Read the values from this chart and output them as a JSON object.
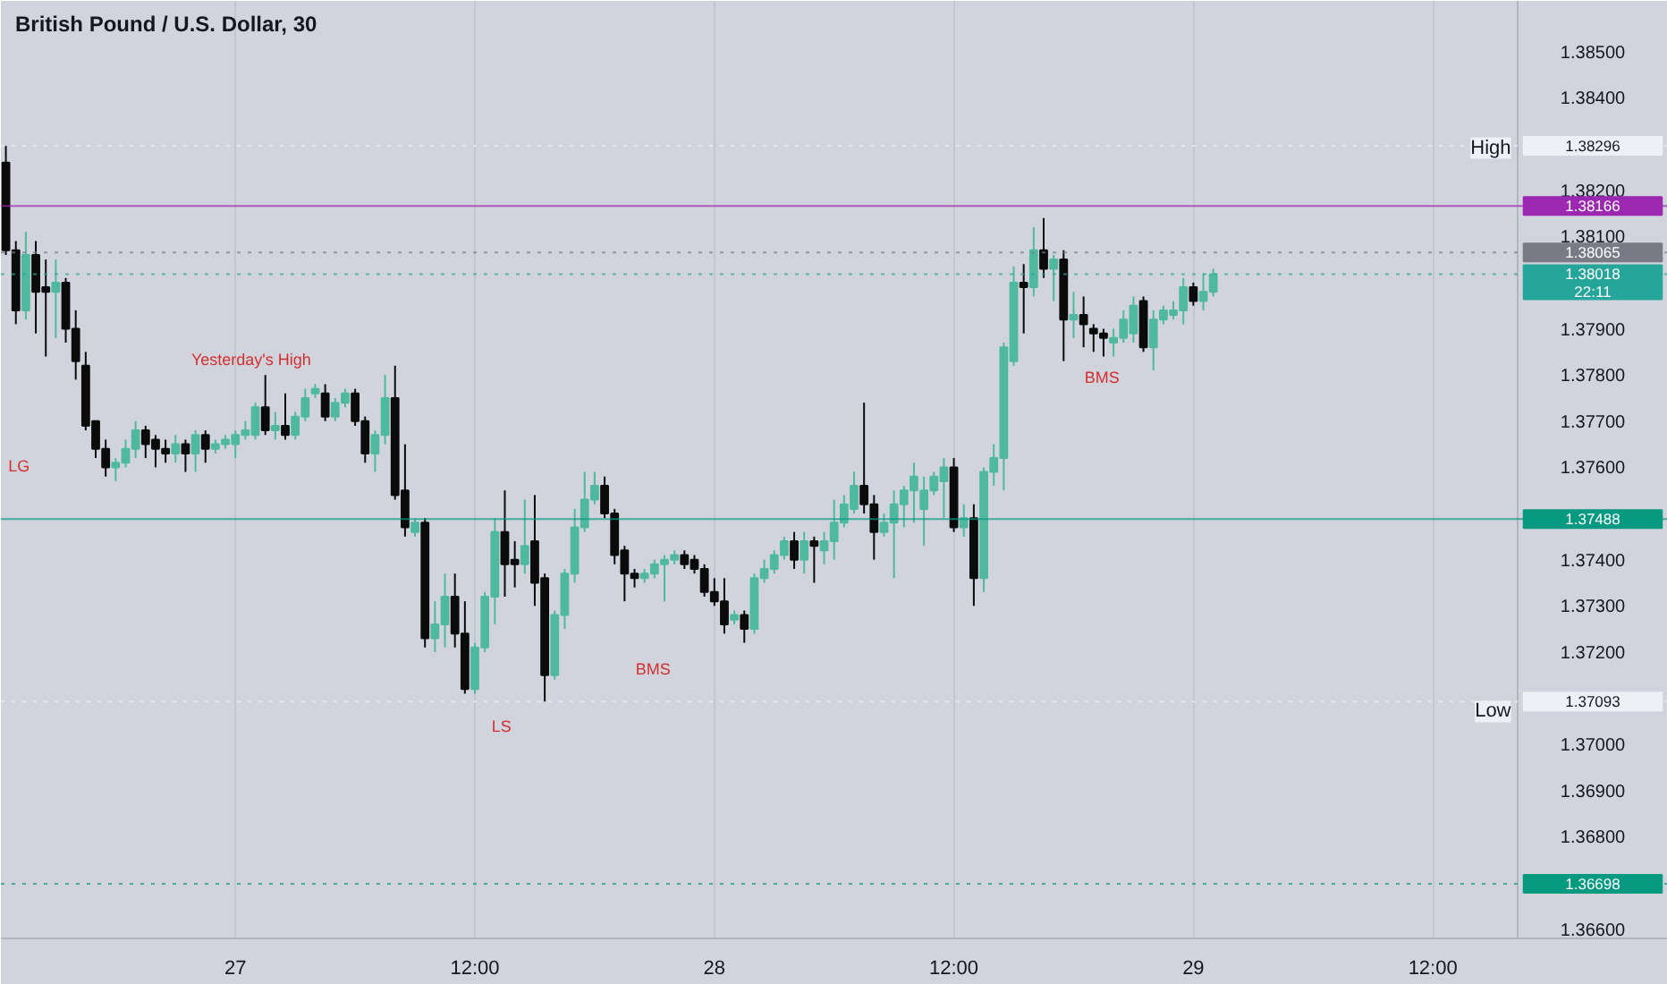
{
  "chart_data": {
    "type": "candlestick",
    "title": "British Pound / U.S. Dollar, 30",
    "categories": [
      null,
      null,
      null,
      null,
      null,
      null,
      null,
      null,
      null,
      null,
      null,
      null,
      null,
      null,
      null,
      null,
      null,
      null,
      null,
      null,
      null,
      null,
      null,
      "27",
      null,
      null,
      null,
      null,
      null,
      null,
      null,
      null,
      null,
      null,
      null,
      null,
      null,
      null,
      null,
      null,
      null,
      null,
      null,
      null,
      null,
      null,
      null,
      "12:00",
      null,
      null,
      null,
      null,
      null,
      null,
      null,
      null,
      null,
      null,
      null,
      null,
      null,
      null,
      null,
      null,
      null,
      null,
      null,
      null,
      null,
      null,
      null,
      "28",
      null,
      null,
      null,
      null,
      null,
      null,
      null,
      null,
      null,
      null,
      null,
      null,
      null,
      null,
      null,
      null,
      null,
      null,
      null,
      null,
      null,
      null,
      null,
      "12:00",
      null,
      null,
      null,
      null,
      null,
      null,
      null,
      null,
      null,
      null,
      null,
      null,
      null,
      null,
      null,
      null,
      null,
      null,
      null,
      null,
      null,
      null,
      null,
      "29",
      null,
      null,
      null,
      null,
      null,
      null,
      null,
      null,
      null,
      null,
      null,
      null,
      null,
      null,
      null,
      null,
      null,
      null,
      null,
      null,
      null,
      null,
      null,
      "12:00",
      null,
      null,
      null,
      null,
      null,
      null,
      null,
      null
    ],
    "ylim": [
      1.3658,
      1.3861
    ],
    "yticks": [
      {
        "value": 1.366,
        "label": "1.36600"
      },
      {
        "value": 1.368,
        "label": "1.36800"
      },
      {
        "value": 1.369,
        "label": "1.36900"
      },
      {
        "value": 1.37,
        "label": "1.37000"
      },
      {
        "value": 1.372,
        "label": "1.37200"
      },
      {
        "value": 1.373,
        "label": "1.37300"
      },
      {
        "value": 1.374,
        "label": "1.37400"
      },
      {
        "value": 1.376,
        "label": "1.37600"
      },
      {
        "value": 1.377,
        "label": "1.37700"
      },
      {
        "value": 1.378,
        "label": "1.37800"
      },
      {
        "value": 1.379,
        "label": "1.37900"
      },
      {
        "value": 1.381,
        "label": "1.38100"
      },
      {
        "value": 1.382,
        "label": "1.38200"
      },
      {
        "value": 1.384,
        "label": "1.38400"
      },
      {
        "value": 1.385,
        "label": "1.38500"
      }
    ],
    "grid": "x",
    "series": [
      {
        "color": "#0b0b0b",
        "ohlc": [
          [
            1.3826,
            1.38296,
            1.3806,
            1.3807
          ],
          [
            1.3807,
            1.3809,
            1.3791,
            1.3794
          ],
          null,
          [
            1.3806,
            1.3809,
            1.3789,
            1.3798
          ],
          [
            1.3799,
            1.3805,
            1.3784,
            1.3798
          ],
          null,
          [
            1.38,
            1.3801,
            1.3787,
            1.379
          ],
          [
            1.379,
            1.3794,
            1.3779,
            1.3783
          ],
          [
            1.3782,
            1.3785,
            1.3768,
            1.3769
          ],
          [
            1.377,
            1.377,
            1.3762,
            1.3764
          ],
          [
            1.3764,
            1.3766,
            1.3758,
            1.376
          ],
          null,
          null,
          null,
          [
            1.3768,
            1.3769,
            1.3762,
            1.3765
          ],
          [
            1.3766,
            1.3767,
            1.376,
            1.3764
          ],
          [
            1.3764,
            1.3766,
            1.3761,
            1.3763
          ],
          null,
          [
            1.3765,
            1.3766,
            1.3759,
            1.3763
          ],
          null,
          [
            1.3767,
            1.3768,
            1.3761,
            1.3764
          ],
          null,
          null,
          null,
          null,
          null,
          [
            1.3773,
            1.378,
            1.3767,
            1.3768
          ],
          null,
          [
            1.3769,
            1.3776,
            1.3766,
            1.3767
          ],
          null,
          null,
          null,
          [
            1.3776,
            1.3778,
            1.377,
            1.3771
          ],
          null,
          null,
          [
            1.3776,
            1.3777,
            1.3769,
            1.377
          ],
          [
            1.377,
            1.3771,
            1.3761,
            1.3763
          ],
          null,
          null,
          [
            1.3775,
            1.3782,
            1.3753,
            1.3754
          ],
          [
            1.3755,
            1.3765,
            1.3745,
            1.3747
          ],
          null,
          [
            1.3748,
            1.3749,
            1.3721,
            1.3723
          ],
          null,
          null,
          [
            1.3732,
            1.3737,
            1.3721,
            1.3724
          ],
          [
            1.3724,
            1.3731,
            1.3711,
            1.3712
          ],
          null,
          null,
          null,
          [
            1.3746,
            1.3755,
            1.3732,
            1.3739
          ],
          [
            1.374,
            1.3744,
            1.3734,
            1.3739
          ],
          null,
          [
            1.3744,
            1.3754,
            1.373,
            1.3735
          ],
          [
            1.3736,
            1.3737,
            1.37093,
            1.3715
          ],
          null,
          null,
          null,
          null,
          null,
          [
            1.3756,
            1.3758,
            1.3749,
            1.375
          ],
          [
            1.375,
            1.3751,
            1.3739,
            1.3741
          ],
          [
            1.3742,
            1.3743,
            1.3731,
            1.3737
          ],
          [
            1.3737,
            1.3738,
            1.3734,
            1.3736
          ],
          null,
          null,
          null,
          null,
          [
            1.3741,
            1.3742,
            1.3738,
            1.3739
          ],
          [
            1.374,
            1.3741,
            1.3737,
            1.3738
          ],
          [
            1.3738,
            1.3739,
            1.3732,
            1.3733
          ],
          [
            1.3733,
            1.3736,
            1.373,
            1.3731
          ],
          [
            1.3731,
            1.3736,
            1.3724,
            1.3726
          ],
          null,
          [
            1.3728,
            1.3729,
            1.3722,
            1.3725
          ],
          null,
          null,
          null,
          null,
          [
            1.3744,
            1.3746,
            1.3738,
            1.374
          ],
          null,
          [
            1.3744,
            1.3745,
            1.3735,
            1.3743
          ],
          null,
          null,
          null,
          null,
          [
            1.3756,
            1.3774,
            1.375,
            1.3752
          ],
          [
            1.3752,
            1.3754,
            1.374,
            1.3746
          ],
          null,
          null,
          null,
          null,
          null,
          null,
          null,
          [
            1.376,
            1.3762,
            1.3746,
            1.3747
          ],
          null,
          [
            1.3749,
            1.3752,
            1.373,
            1.3736
          ],
          null,
          null,
          null,
          null,
          [
            1.38,
            1.3804,
            1.3789,
            1.3799
          ],
          null,
          [
            1.3807,
            1.3814,
            1.3801,
            1.3803
          ],
          null,
          [
            1.3805,
            1.3807,
            1.3783,
            1.3792
          ],
          null,
          [
            1.3793,
            1.3797,
            1.3786,
            1.3791
          ],
          [
            1.379,
            1.3791,
            1.3785,
            1.3789
          ],
          [
            1.3789,
            1.379,
            1.3784,
            1.3788
          ],
          null,
          null,
          null,
          [
            1.3796,
            1.3797,
            1.3785,
            1.3786
          ],
          null,
          null,
          null,
          null,
          [
            1.3799,
            1.38,
            1.3795,
            1.3796
          ],
          null,
          null,
          null,
          null,
          null,
          null,
          null,
          null,
          null,
          null,
          null,
          null,
          null,
          null,
          null,
          null,
          null,
          null,
          null,
          null,
          null,
          null,
          null,
          null,
          null,
          null,
          null,
          null,
          null,
          null,
          null,
          null
        ]
      },
      {
        "color": "#4fb9a0",
        "ohlc": [
          null,
          null,
          [
            1.3794,
            1.3811,
            1.3792,
            1.3806
          ],
          null,
          null,
          [
            1.3798,
            1.3805,
            1.3788,
            1.38
          ],
          null,
          null,
          null,
          null,
          null,
          [
            1.376,
            1.3762,
            1.3757,
            1.3761
          ],
          [
            1.3761,
            1.3766,
            1.376,
            1.3764
          ],
          [
            1.3764,
            1.377,
            1.3762,
            1.3768
          ],
          null,
          null,
          null,
          [
            1.3763,
            1.3767,
            1.3761,
            1.3765
          ],
          null,
          [
            1.3763,
            1.3768,
            1.3759,
            1.3767
          ],
          null,
          [
            1.3764,
            1.3766,
            1.3763,
            1.3765
          ],
          [
            1.3765,
            1.3767,
            1.3764,
            1.3766
          ],
          [
            1.3765,
            1.3768,
            1.3762,
            1.3767
          ],
          [
            1.3767,
            1.377,
            1.3766,
            1.3768
          ],
          [
            1.3767,
            1.3774,
            1.3766,
            1.3773
          ],
          null,
          [
            1.3768,
            1.3772,
            1.3766,
            1.3769
          ],
          null,
          [
            1.3767,
            1.3772,
            1.3766,
            1.3771
          ],
          [
            1.3771,
            1.3777,
            1.377,
            1.3775
          ],
          [
            1.3776,
            1.3778,
            1.3775,
            1.3777
          ],
          null,
          [
            1.3771,
            1.3775,
            1.377,
            1.3774
          ],
          [
            1.3774,
            1.3777,
            1.3773,
            1.3776
          ],
          null,
          null,
          [
            1.3763,
            1.3768,
            1.3759,
            1.3767
          ],
          [
            1.3767,
            1.378,
            1.3765,
            1.3775
          ],
          null,
          null,
          [
            1.3746,
            1.3749,
            1.3745,
            1.3748
          ],
          null,
          [
            1.3723,
            1.3731,
            1.372,
            1.3726
          ],
          [
            1.3726,
            1.3737,
            1.3721,
            1.3732
          ],
          null,
          null,
          [
            1.3712,
            1.3722,
            1.3711,
            1.3721
          ],
          [
            1.3721,
            1.3733,
            1.372,
            1.3732
          ],
          [
            1.3732,
            1.3749,
            1.3726,
            1.3746
          ],
          null,
          null,
          [
            1.3739,
            1.3753,
            1.3737,
            1.3743
          ],
          null,
          null,
          [
            1.3715,
            1.3729,
            1.3714,
            1.3728
          ],
          [
            1.3728,
            1.3738,
            1.3725,
            1.3737
          ],
          [
            1.3737,
            1.3751,
            1.3735,
            1.3747
          ],
          [
            1.3747,
            1.3759,
            1.3746,
            1.3753
          ],
          [
            1.3753,
            1.3759,
            1.3752,
            1.3756
          ],
          null,
          null,
          null,
          null,
          [
            1.3736,
            1.3738,
            1.3735,
            1.3737
          ],
          [
            1.3737,
            1.374,
            1.3736,
            1.3739
          ],
          [
            1.3739,
            1.3741,
            1.3731,
            1.374
          ],
          [
            1.374,
            1.3742,
            1.3739,
            1.3741
          ],
          null,
          null,
          null,
          null,
          null,
          [
            1.3727,
            1.3729,
            1.3726,
            1.3728
          ],
          null,
          [
            1.3725,
            1.3737,
            1.3724,
            1.3736
          ],
          [
            1.3736,
            1.374,
            1.3735,
            1.3738
          ],
          [
            1.3738,
            1.3742,
            1.3737,
            1.3741
          ],
          [
            1.3741,
            1.3745,
            1.374,
            1.3744
          ],
          null,
          [
            1.374,
            1.3746,
            1.3737,
            1.3744
          ],
          null,
          [
            1.3742,
            1.3746,
            1.3739,
            1.3744
          ],
          [
            1.3744,
            1.3753,
            1.374,
            1.3748
          ],
          [
            1.3748,
            1.3754,
            1.3747,
            1.3752
          ],
          [
            1.3751,
            1.3759,
            1.375,
            1.3756
          ],
          null,
          null,
          [
            1.3746,
            1.375,
            1.3745,
            1.3748
          ],
          [
            1.3748,
            1.3755,
            1.3736,
            1.3752
          ],
          [
            1.3752,
            1.3756,
            1.3747,
            1.3755
          ],
          [
            1.3755,
            1.3761,
            1.3748,
            1.3758
          ],
          [
            1.3751,
            1.3758,
            1.3743,
            1.3755
          ],
          [
            1.3755,
            1.3759,
            1.3754,
            1.3758
          ],
          [
            1.3757,
            1.3762,
            1.3749,
            1.376
          ],
          null,
          [
            1.3747,
            1.3752,
            1.3745,
            1.3749
          ],
          null,
          [
            1.3736,
            1.376,
            1.3733,
            1.3759
          ],
          [
            1.3759,
            1.3765,
            1.3756,
            1.3762
          ],
          [
            1.3762,
            1.3787,
            1.3755,
            1.3786
          ],
          [
            1.3783,
            1.38035,
            1.3782,
            1.38
          ],
          null,
          [
            1.3799,
            1.3812,
            1.3797,
            1.3807
          ],
          null,
          [
            1.3803,
            1.3806,
            1.3796,
            1.3805
          ],
          null,
          [
            1.3792,
            1.3798,
            1.3788,
            1.3793
          ],
          null,
          null,
          null,
          [
            1.3787,
            1.379,
            1.3784,
            1.3788
          ],
          [
            1.3788,
            1.3794,
            1.3787,
            1.3792
          ],
          [
            1.3789,
            1.3797,
            1.3787,
            1.3795
          ],
          null,
          [
            1.3786,
            1.3794,
            1.3781,
            1.3792
          ],
          [
            1.3792,
            1.3795,
            1.3791,
            1.3794
          ],
          [
            1.3793,
            1.3796,
            1.3792,
            1.3794
          ],
          [
            1.3794,
            1.3801,
            1.3791,
            1.3799
          ],
          null,
          [
            1.3796,
            1.3802,
            1.3794,
            1.3798
          ],
          [
            1.3798,
            1.3803,
            1.3797,
            1.38018
          ],
          null,
          null,
          null,
          null,
          null,
          null,
          null,
          null,
          null,
          null,
          null,
          null,
          null,
          null,
          null,
          null,
          null,
          null,
          null,
          null,
          null,
          null,
          null,
          null,
          null,
          null,
          null,
          null,
          null,
          null
        ]
      }
    ],
    "ref_lines": [
      {
        "axis": "y",
        "value": 1.38166,
        "label": "1.38166",
        "color": "#9c27b0",
        "line_style": "solid"
      },
      {
        "axis": "y",
        "value": 1.38065,
        "label": "1.38065",
        "color": "#787b86",
        "line_style": "dotted"
      },
      {
        "axis": "y",
        "value": 1.38018,
        "label": "1.38018\n22:11",
        "color": "#26a69a",
        "line_style": "dotted"
      },
      {
        "axis": "y",
        "value": 1.37488,
        "label": "1.37488",
        "color": "#089981",
        "line_style": "solid"
      },
      {
        "axis": "y",
        "value": 1.36698,
        "label": "1.36698",
        "color": "#089981",
        "line_style": "dotted"
      },
      {
        "axis": "y",
        "value": 1.38296,
        "label": "1.38296",
        "color": "#eef0f5",
        "line_style": "dotted"
      },
      {
        "axis": "y",
        "value": 1.37093,
        "label": "1.37093",
        "color": "#eef0f5",
        "line_style": "dotted"
      }
    ],
    "annotations": [
      "Yesterday's High",
      "LG",
      "BMS",
      "LS",
      "BMS",
      "High",
      "Low"
    ]
  }
}
